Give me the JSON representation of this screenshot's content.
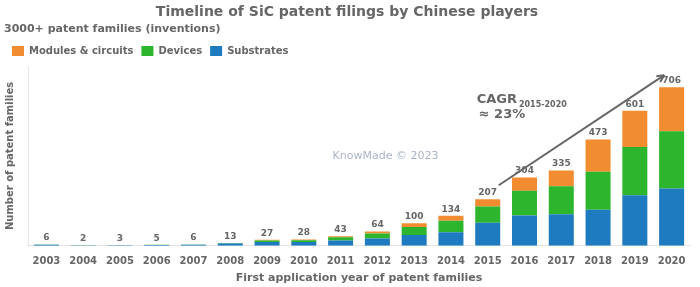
{
  "chart_data": {
    "type": "bar",
    "stacked": true,
    "title": "Timeline of SiC patent filings by Chinese players",
    "subtitle": "3000+ patent families (inventions)",
    "xlabel": "First application year of patent families",
    "ylabel": "Number of patent families",
    "annotations": [
      "KnowMade © 2023",
      "CAGR",
      "2015-2020",
      "≈ 23%"
    ],
    "categories": [
      "2003",
      "2004",
      "2005",
      "2006",
      "2007",
      "2008",
      "2009",
      "2010",
      "2011",
      "2012",
      "2013",
      "2014",
      "2015",
      "2016",
      "2017",
      "2018",
      "2019",
      "2020"
    ],
    "series": [
      {
        "name": "Substrates",
        "color": "#1f7bc0",
        "values": [
          5,
          1,
          2,
          4,
          5,
          10,
          17,
          17,
          24,
          33,
          48,
          60,
          103,
          135,
          140,
          160,
          225,
          255
        ]
      },
      {
        "name": "Devices",
        "color": "#2db52d",
        "values": [
          1,
          1,
          1,
          1,
          1,
          2,
          7,
          8,
          14,
          22,
          36,
          52,
          72,
          110,
          125,
          170,
          215,
          255
        ]
      },
      {
        "name": "Modules & circuits",
        "color": "#f28c30",
        "values": [
          0,
          0,
          0,
          0,
          0,
          1,
          3,
          3,
          5,
          9,
          16,
          22,
          32,
          59,
          70,
          143,
          161,
          196
        ]
      }
    ],
    "totals": [
      6,
      2,
      3,
      5,
      6,
      13,
      27,
      28,
      43,
      64,
      100,
      134,
      207,
      304,
      335,
      473,
      601,
      706
    ],
    "ylim": [
      0,
      800
    ],
    "yticks": [],
    "grid": false,
    "legend": "upper left",
    "tick_labels": "x"
  }
}
